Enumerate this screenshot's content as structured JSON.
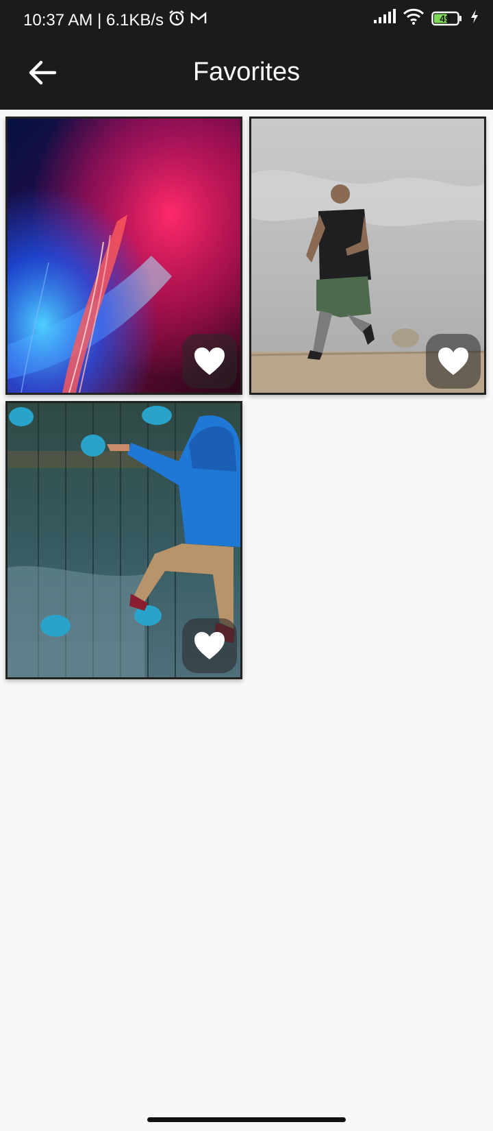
{
  "status_bar": {
    "time_speed": "10:37 AM | 6.1KB/s",
    "battery": "49",
    "icons": [
      "alarm-icon",
      "gmail-icon",
      "signal-icon",
      "wifi-icon",
      "battery-icon",
      "charging-icon"
    ]
  },
  "app_bar": {
    "title": "Favorites",
    "back_icon": "arrow-left-icon"
  },
  "favorites": [
    {
      "subject": "abstract light trails",
      "favorited": true,
      "icon": "heart-icon"
    },
    {
      "subject": "man running on sand",
      "favorited": true,
      "icon": "heart-icon"
    },
    {
      "subject": "child climbing wall",
      "favorited": true,
      "icon": "heart-icon"
    }
  ],
  "colors": {
    "bar_background": "#1b1b1b",
    "page_background": "#f8f8f8",
    "heart": "#ffffff"
  }
}
